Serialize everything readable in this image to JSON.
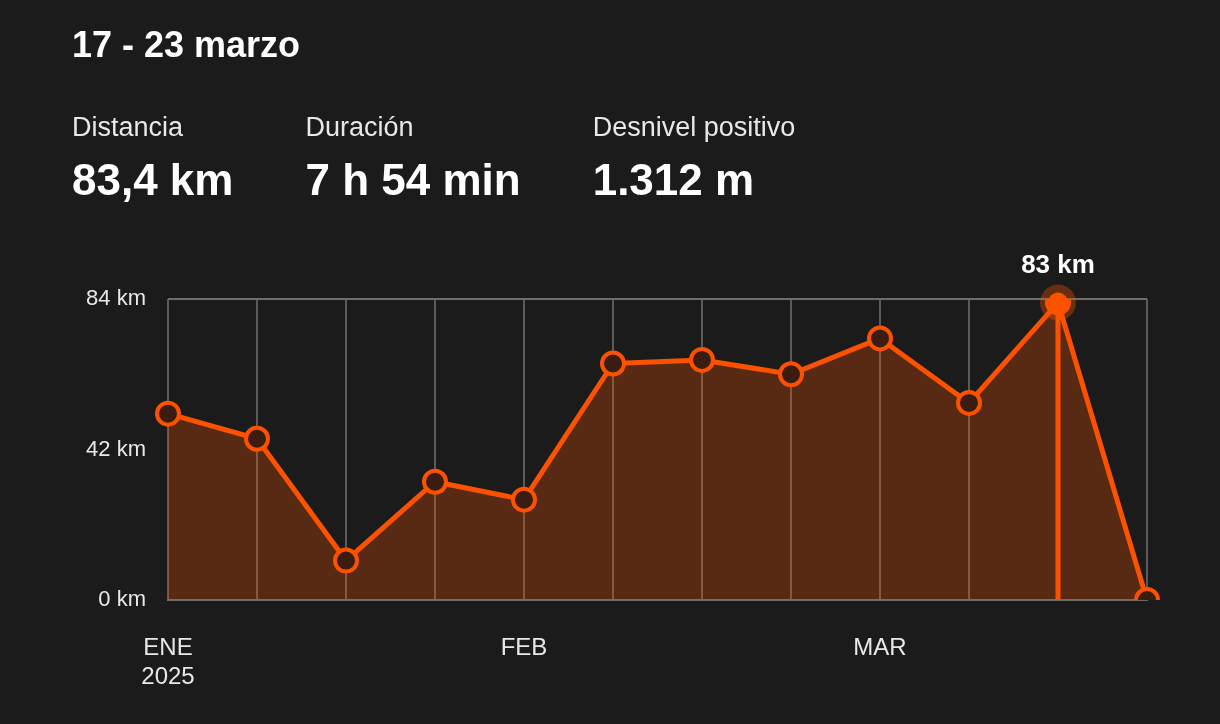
{
  "chart_data": {
    "type": "area",
    "title": "17 - 23 marzo",
    "annotations": [
      "Distancia",
      "83,4 km",
      "Duración",
      "7 h 54 min",
      "Desnivel positivo",
      "1.312 m"
    ],
    "categories": [
      "ENE\n2025",
      null,
      null,
      null,
      "FEB",
      null,
      null,
      null,
      "MAR",
      null,
      null,
      null
    ],
    "series": [
      {
        "color": "#fc5200",
        "values": [
          52,
          45,
          11,
          33,
          28,
          66,
          67,
          63,
          73,
          55,
          83,
          0
        ],
        "value_labels": [
          null,
          null,
          null,
          null,
          null,
          null,
          null,
          null,
          null,
          null,
          "83 km",
          null
        ]
      }
    ],
    "ylim": [
      0,
      84
    ],
    "yticks": [
      {
        "value": 0,
        "label": "0 km"
      },
      {
        "value": 42,
        "label": "42 km"
      },
      {
        "value": 84,
        "label": "84 km"
      }
    ],
    "grid": "x",
    "marker": "circle"
  }
}
